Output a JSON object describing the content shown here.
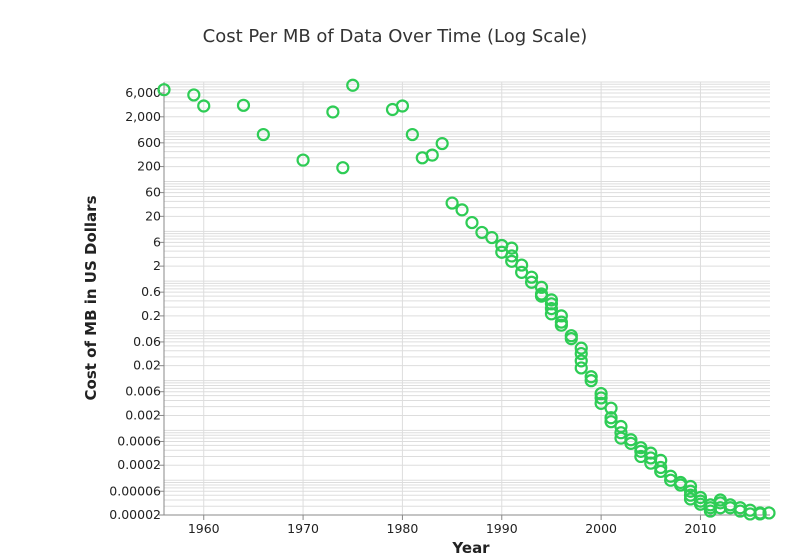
{
  "chart_data": {
    "type": "scatter",
    "title": "Cost Per MB of Data Over Time (Log Scale)",
    "xlabel": "Year",
    "ylabel": "Cost of MB in US Dollars",
    "x_ticks": [
      1960,
      1970,
      1980,
      1990,
      2000,
      2010
    ],
    "y_tick_labels": [
      "6,000",
      "2,000",
      "600",
      "200",
      "60",
      "20",
      "6",
      "2",
      "0.6",
      "0.2",
      "0.06",
      "0.02",
      "0.006",
      "0.002",
      "0.0006",
      "0.0002",
      "0.00006",
      "0.00002"
    ],
    "y_scale": "log",
    "xlim": [
      1956,
      2017
    ],
    "ylim": [
      2e-05,
      10000
    ],
    "grid": true,
    "marker": "open-circle",
    "color": "#2ecc55",
    "points": [
      [
        1956,
        7000
      ],
      [
        1959,
        5500
      ],
      [
        1960,
        3300
      ],
      [
        1964,
        3400
      ],
      [
        1966,
        880
      ],
      [
        1970,
        270
      ],
      [
        1973,
        2500
      ],
      [
        1974,
        190
      ],
      [
        1975,
        8600
      ],
      [
        1979,
        2800
      ],
      [
        1980,
        3300
      ],
      [
        1981,
        880
      ],
      [
        1982,
        300
      ],
      [
        1983,
        340
      ],
      [
        1984,
        580
      ],
      [
        1985,
        37
      ],
      [
        1986,
        27
      ],
      [
        1987,
        15
      ],
      [
        1988,
        9.5
      ],
      [
        1989,
        7.5
      ],
      [
        1990,
        5.2
      ],
      [
        1990,
        3.8
      ],
      [
        1991,
        4.6
      ],
      [
        1991,
        3.2
      ],
      [
        1991,
        2.5
      ],
      [
        1992,
        2.1
      ],
      [
        1992,
        1.5
      ],
      [
        1993,
        1.2
      ],
      [
        1993,
        0.95
      ],
      [
        1994,
        0.75
      ],
      [
        1994,
        0.55
      ],
      [
        1994,
        0.5
      ],
      [
        1995,
        0.42
      ],
      [
        1995,
        0.35
      ],
      [
        1995,
        0.28
      ],
      [
        1995,
        0.22
      ],
      [
        1996,
        0.2
      ],
      [
        1996,
        0.15
      ],
      [
        1996,
        0.13
      ],
      [
        1997,
        0.08
      ],
      [
        1997,
        0.07
      ],
      [
        1998,
        0.045
      ],
      [
        1998,
        0.035
      ],
      [
        1998,
        0.025
      ],
      [
        1998,
        0.018
      ],
      [
        1999,
        0.012
      ],
      [
        1999,
        0.01
      ],
      [
        2000,
        0.0055
      ],
      [
        2000,
        0.0045
      ],
      [
        2000,
        0.0035
      ],
      [
        2001,
        0.0028
      ],
      [
        2001,
        0.0018
      ],
      [
        2001,
        0.0015
      ],
      [
        2002,
        0.0012
      ],
      [
        2002,
        0.0009
      ],
      [
        2002,
        0.0007
      ],
      [
        2003,
        0.00065
      ],
      [
        2003,
        0.00055
      ],
      [
        2004,
        0.00045
      ],
      [
        2004,
        0.00038
      ],
      [
        2004,
        0.0003
      ],
      [
        2005,
        0.00035
      ],
      [
        2005,
        0.00028
      ],
      [
        2005,
        0.00022
      ],
      [
        2006,
        0.00025
      ],
      [
        2006,
        0.00018
      ],
      [
        2006,
        0.00015
      ],
      [
        2007,
        0.00012
      ],
      [
        2007,
        0.0001
      ],
      [
        2008,
        9e-05
      ],
      [
        2008,
        8e-05
      ],
      [
        2009,
        7.5e-05
      ],
      [
        2009,
        6e-05
      ],
      [
        2009,
        5e-05
      ],
      [
        2009,
        4.2e-05
      ],
      [
        2010,
        4.5e-05
      ],
      [
        2010,
        3.8e-05
      ],
      [
        2010,
        3.3e-05
      ],
      [
        2011,
        3.2e-05
      ],
      [
        2011,
        2.8e-05
      ],
      [
        2011,
        2.4e-05
      ],
      [
        2012,
        4e-05
      ],
      [
        2012,
        3.5e-05
      ],
      [
        2012,
        2.8e-05
      ],
      [
        2013,
        3.2e-05
      ],
      [
        2013,
        2.8e-05
      ],
      [
        2014,
        2.8e-05
      ],
      [
        2014,
        2.4e-05
      ],
      [
        2015,
        2.5e-05
      ],
      [
        2015,
        2.1e-05
      ],
      [
        2016,
        2.2e-05
      ],
      [
        2016,
        2.1e-05
      ],
      [
        2017,
        2.2e-05
      ]
    ]
  }
}
